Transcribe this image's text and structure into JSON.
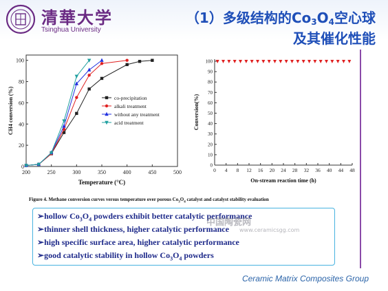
{
  "header": {
    "logo_cn": "清華大学",
    "logo_en": "Tsinghua University",
    "title_prefix": "（1）多级结构的Co",
    "title_sub3": "3",
    "title_mid": "O",
    "title_sub4": "4",
    "title_suffix": "空心球",
    "title_line2": "及其催化性能"
  },
  "colors": {
    "title": "#1f4fb8",
    "logo": "#6a2a83",
    "bullet_text": "#1e2a8a",
    "box_border": "#46b2e0",
    "accent_line": "#8a4aa8",
    "footer": "#2a63a8"
  },
  "chart_data": [
    {
      "type": "line",
      "xlabel": "Temperature (°C)",
      "ylabel": "CH4 conversion (%)",
      "xlim": [
        200,
        500
      ],
      "ylim": [
        0,
        105
      ],
      "xticks": [
        200,
        250,
        300,
        350,
        400,
        450,
        500
      ],
      "yticks": [
        0,
        20,
        40,
        60,
        80,
        100
      ],
      "legend_position": "center-right",
      "series": [
        {
          "name": "co-precipitation",
          "color": "#222222",
          "marker": "square",
          "x": [
            200,
            225,
            250,
            275,
            300,
            325,
            350,
            400,
            425,
            450
          ],
          "y": [
            1,
            2,
            12,
            32,
            50,
            73,
            83,
            96,
            99,
            100
          ]
        },
        {
          "name": "alkali treatment",
          "color": "#e02020",
          "marker": "circle",
          "x": [
            200,
            225,
            250,
            275,
            300,
            325,
            350,
            400
          ],
          "y": [
            1,
            2,
            12,
            35,
            65,
            86,
            97,
            100
          ]
        },
        {
          "name": "without any treatment",
          "color": "#2030e0",
          "marker": "triangle-up",
          "x": [
            200,
            225,
            250,
            275,
            300,
            325,
            350
          ],
          "y": [
            1,
            2,
            13,
            38,
            78,
            91,
            100
          ]
        },
        {
          "name": "acid treatment",
          "color": "#20a0a0",
          "marker": "triangle-down",
          "x": [
            200,
            225,
            250,
            275,
            300,
            325
          ],
          "y": [
            1,
            2,
            13,
            43,
            85,
            100
          ]
        }
      ]
    },
    {
      "type": "scatter",
      "xlabel": "On-stream reaction time (h)",
      "ylabel": "Conversion(%)",
      "xlim": [
        0,
        48
      ],
      "ylim": [
        0,
        102
      ],
      "xticks": [
        0,
        4,
        8,
        12,
        16,
        20,
        24,
        28,
        32,
        36,
        40,
        44,
        48
      ],
      "yticks": [
        0,
        10,
        20,
        30,
        40,
        50,
        60,
        70,
        80,
        90,
        100
      ],
      "series": [
        {
          "color": "#e02020",
          "marker": "triangle-down",
          "x": [
            1,
            3,
            5,
            7,
            9,
            11,
            13,
            15,
            17,
            19,
            21,
            23,
            25,
            27,
            29,
            31,
            33,
            35,
            37,
            39,
            41,
            43,
            45,
            47
          ],
          "y": [
            100,
            100,
            100,
            100,
            100,
            100,
            100,
            100,
            100,
            100,
            100,
            100,
            100,
            100,
            100,
            100,
            100,
            100,
            100,
            100,
            100,
            100,
            100,
            100
          ]
        }
      ]
    }
  ],
  "caption": {
    "before": "Figure 4. Methane conversion curves versus temperature over porous Co",
    "sub3": "3",
    "mid": "O",
    "sub4": "4",
    "after": " catalyst and catalyst stability evaluation"
  },
  "bullets": [
    {
      "marker": "➢",
      "text_a": "hollow Co",
      "sub_a": "3",
      "text_b": "O",
      "sub_b": "4",
      "text_c": " powders exhibit better catalytic performance"
    },
    {
      "marker": "➢",
      "text": "thinner shell thickness, higher catalytic performance"
    },
    {
      "marker": "➢",
      "text": "high specific surface area, higher catalytic performance"
    },
    {
      "marker": "➢",
      "text_a": "good catalytic stability in hollow Co",
      "sub_a": "3",
      "text_b": "O",
      "sub_b": "4",
      "text_c": " powders"
    }
  ],
  "watermark": {
    "text": "中国陶瓷网",
    "url": "www.ceramicsgg.com"
  },
  "footer": {
    "text": "Ceramic Matrix Composites Group"
  }
}
